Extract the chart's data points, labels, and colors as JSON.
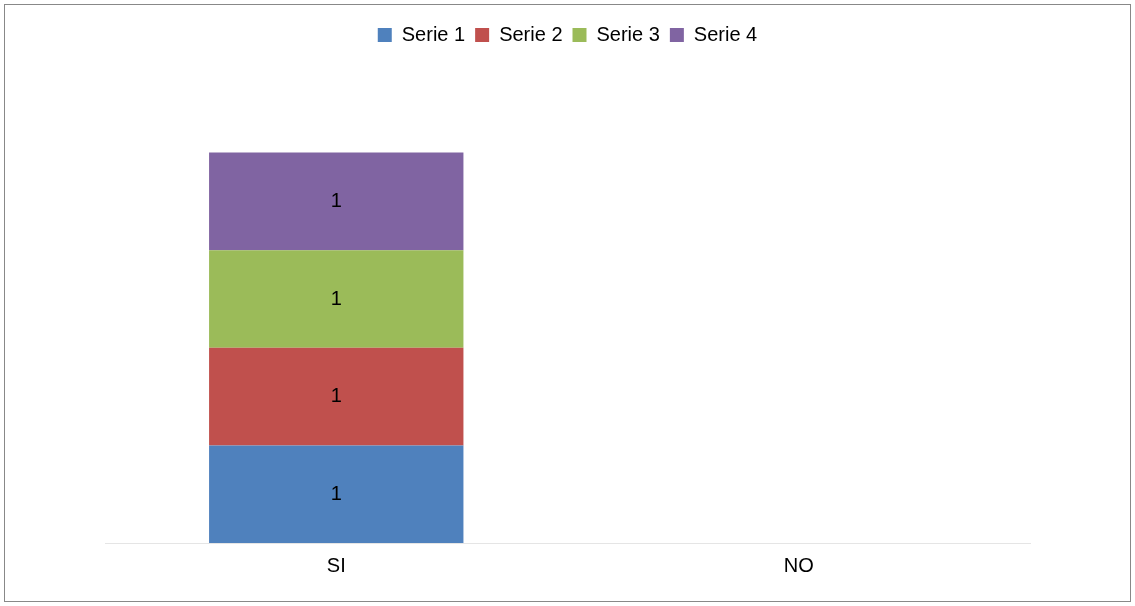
{
  "chart_data": {
    "type": "bar",
    "stacked": true,
    "categories": [
      "SI",
      "NO"
    ],
    "series": [
      {
        "name": "Serie 1",
        "color": "#4f81bd",
        "values": [
          1,
          null
        ]
      },
      {
        "name": "Serie 2",
        "color": "#c0504d",
        "values": [
          1,
          null
        ]
      },
      {
        "name": "Serie 3",
        "color": "#9bbb59",
        "values": [
          1,
          null
        ]
      },
      {
        "name": "Serie 4",
        "color": "#8064a2",
        "values": [
          1,
          null
        ]
      }
    ],
    "data_labels": true,
    "legend": "top",
    "grid": false
  }
}
